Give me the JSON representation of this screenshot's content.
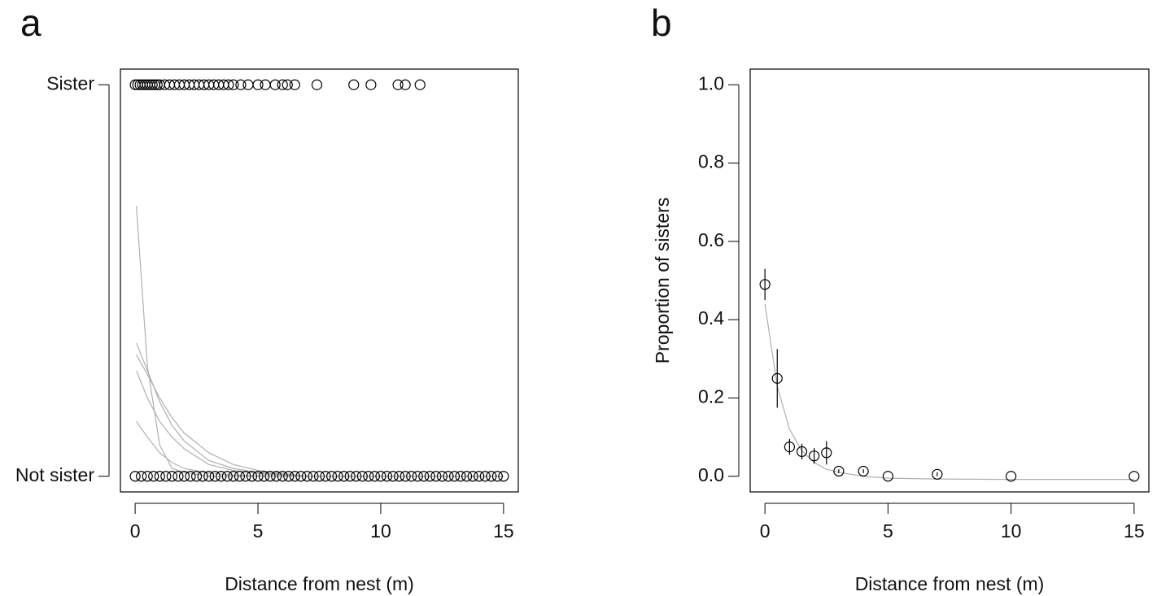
{
  "chart_data": [
    {
      "type": "scatter",
      "panel_label": "a",
      "x_label": "Distance from nest (m)",
      "color": "#000000",
      "x": [
        0,
        0.1,
        0.2,
        0.3,
        0.4,
        0.5,
        0.6,
        0.7,
        0.8,
        0.9,
        1.0,
        1.2,
        1.4,
        1.6,
        1.8,
        2.0,
        2.2,
        2.4,
        2.6,
        2.8,
        3.0,
        3.2,
        3.4,
        3.6,
        3.8,
        4.0,
        4.3,
        4.6,
        5.0,
        5.3,
        5.7,
        6.0,
        6.2,
        6.5,
        7.4,
        8.9,
        9.6,
        10.7,
        11.0,
        11.6,
        0,
        0.25,
        0.5,
        0.75,
        1,
        1.25,
        1.5,
        1.75,
        2,
        2.25,
        2.5,
        2.75,
        3,
        3.25,
        3.5,
        3.75,
        4,
        4.25,
        4.5,
        4.75,
        5,
        5.25,
        5.5,
        5.75,
        6,
        6.25,
        6.5,
        6.75,
        7,
        7.25,
        7.5,
        7.75,
        8,
        8.25,
        8.5,
        8.75,
        9,
        9.25,
        9.5,
        9.75,
        10,
        10.25,
        10.5,
        10.75,
        11,
        11.25,
        11.5,
        11.75,
        12,
        12.25,
        12.5,
        12.75,
        13,
        13.25,
        13.5,
        13.75,
        14,
        14.25,
        14.5,
        14.75,
        15
      ],
      "values": [
        1,
        1,
        1,
        1,
        1,
        1,
        1,
        1,
        1,
        1,
        1,
        1,
        1,
        1,
        1,
        1,
        1,
        1,
        1,
        1,
        1,
        1,
        1,
        1,
        1,
        1,
        1,
        1,
        1,
        1,
        1,
        1,
        1,
        1,
        1,
        1,
        1,
        1,
        1,
        1,
        0,
        0,
        0,
        0,
        0,
        0,
        0,
        0,
        0,
        0,
        0,
        0,
        0,
        0,
        0,
        0,
        0,
        0,
        0,
        0,
        0,
        0,
        0,
        0,
        0,
        0,
        0,
        0,
        0,
        0,
        0,
        0,
        0,
        0,
        0,
        0,
        0,
        0,
        0,
        0,
        0,
        0,
        0,
        0,
        0,
        0,
        0,
        0,
        0,
        0,
        0,
        0,
        0,
        0,
        0,
        0,
        0,
        0,
        0,
        0,
        0
      ],
      "curves": [
        {
          "color": "#b0b0b0",
          "x": [
            0.05,
            0.5,
            1,
            1.5,
            2,
            3,
            4,
            5,
            7,
            10,
            15
          ],
          "values": [
            0.69,
            0.28,
            0.08,
            0.02,
            0.01,
            0,
            0,
            0,
            0,
            0,
            0
          ]
        },
        {
          "color": "#b0b0b0",
          "x": [
            0.05,
            0.5,
            1,
            1.5,
            2,
            3,
            4,
            5,
            7,
            10,
            15
          ],
          "values": [
            0.34,
            0.27,
            0.19,
            0.13,
            0.09,
            0.04,
            0.02,
            0.01,
            0,
            0,
            0
          ]
        },
        {
          "color": "#b0b0b0",
          "x": [
            0.05,
            0.5,
            1,
            1.5,
            2,
            3,
            4,
            5,
            7,
            10,
            15
          ],
          "values": [
            0.31,
            0.26,
            0.2,
            0.15,
            0.11,
            0.06,
            0.03,
            0.015,
            0,
            0,
            0
          ]
        },
        {
          "color": "#b0b0b0",
          "x": [
            0.05,
            0.5,
            1,
            1.5,
            2,
            3,
            4,
            5,
            7,
            10,
            15
          ],
          "values": [
            0.27,
            0.2,
            0.14,
            0.1,
            0.07,
            0.03,
            0.015,
            0.007,
            0,
            0,
            0
          ]
        },
        {
          "color": "#b0b0b0",
          "x": [
            0.05,
            0.5,
            1,
            1.5,
            2,
            3,
            4,
            5,
            7,
            10,
            15
          ],
          "values": [
            0.14,
            0.1,
            0.06,
            0.035,
            0.02,
            0.008,
            0.003,
            0.001,
            0,
            0,
            0
          ]
        }
      ],
      "xlim": [
        -0.6,
        15.6
      ],
      "ylim": [
        -0.04,
        1.04
      ],
      "xticks": [
        0,
        5,
        10,
        15
      ],
      "yticks": [
        {
          "value": 0,
          "label": "Not sister"
        },
        {
          "value": 1,
          "label": "Sister"
        }
      ]
    },
    {
      "type": "scatter",
      "panel_label": "b",
      "x_label": "Distance from nest (m)",
      "y_label": "Proportion of sisters",
      "color": "#000000",
      "x": [
        0,
        0.5,
        1,
        1.5,
        2,
        2.5,
        3,
        4,
        5,
        7,
        10,
        15
      ],
      "values": [
        0.49,
        0.25,
        0.075,
        0.063,
        0.052,
        0.06,
        0.013,
        0.013,
        0,
        0.005,
        0,
        0
      ],
      "errors": [
        0.04,
        0.075,
        0.02,
        0.02,
        0.02,
        0.03,
        0.005,
        0.005,
        0,
        0.005,
        0,
        0
      ],
      "curves": [
        {
          "color": "#b0b0b0",
          "x": [
            0,
            0.5,
            1,
            1.5,
            2,
            2.5,
            3,
            4,
            5,
            7,
            10,
            15
          ],
          "values": [
            0.44,
            0.23,
            0.12,
            0.065,
            0.035,
            0.018,
            0.01,
            0,
            -0.005,
            -0.007,
            -0.008,
            -0.008
          ]
        }
      ],
      "xlim": [
        -0.6,
        15.6
      ],
      "ylim": [
        -0.04,
        1.04
      ],
      "xticks": [
        0,
        5,
        10,
        15
      ],
      "yticks": [
        {
          "value": 0,
          "label": "0.0"
        },
        {
          "value": 0.2,
          "label": "0.2"
        },
        {
          "value": 0.4,
          "label": "0.4"
        },
        {
          "value": 0.6,
          "label": "0.6"
        },
        {
          "value": 0.8,
          "label": "0.8"
        },
        {
          "value": 1,
          "label": "1.0"
        }
      ]
    }
  ]
}
